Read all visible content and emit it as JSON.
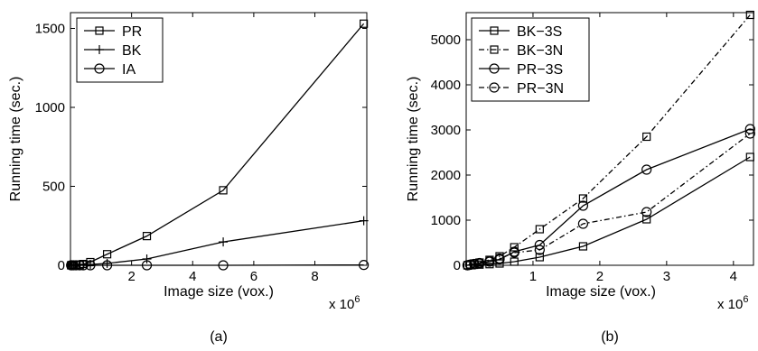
{
  "chart_data": [
    {
      "type": "line",
      "caption": "(a)",
      "xlabel": "Image size (vox.)",
      "ylabel": "Running time (sec.)",
      "x_multiplier": "x 10",
      "x_multiplier_exp": "6",
      "xlim": [
        0,
        9.7
      ],
      "ylim": [
        0,
        1600
      ],
      "xticks": [
        2,
        4,
        6,
        8
      ],
      "yticks": [
        0,
        500,
        1000,
        1500
      ],
      "legend_position": "top-left",
      "series": [
        {
          "name": "PR",
          "marker": "square",
          "style": "solid",
          "x": [
            0.02,
            0.05,
            0.1,
            0.18,
            0.3,
            0.42,
            0.65,
            1.2,
            2.5,
            5.0,
            9.6
          ],
          "y": [
            0,
            1,
            2,
            3,
            5,
            8,
            20,
            70,
            185,
            475,
            1530
          ]
        },
        {
          "name": "BK",
          "marker": "plus",
          "style": "solid",
          "x": [
            0.02,
            0.05,
            0.1,
            0.18,
            0.3,
            0.42,
            0.65,
            1.2,
            2.5,
            5.0,
            9.6
          ],
          "y": [
            0,
            0.5,
            1,
            1.5,
            2,
            3,
            5,
            12,
            40,
            148,
            282
          ]
        },
        {
          "name": "IA",
          "marker": "circle",
          "style": "solid",
          "x": [
            0.02,
            0.05,
            0.1,
            0.18,
            0.3,
            0.42,
            0.65,
            1.2,
            2.5,
            5.0,
            9.6
          ],
          "y": [
            0,
            0,
            0,
            0,
            0,
            0,
            0,
            0,
            0,
            0,
            2
          ]
        }
      ]
    },
    {
      "type": "line",
      "caption": "(b)",
      "xlabel": "Image size (vox.)",
      "ylabel": "Running time (sec.)",
      "x_multiplier": "x 10",
      "x_multiplier_exp": "6",
      "xlim": [
        0,
        4.3
      ],
      "ylim": [
        0,
        5600
      ],
      "xticks": [
        1,
        2,
        3,
        4
      ],
      "yticks": [
        0,
        1000,
        2000,
        3000,
        4000,
        5000
      ],
      "legend_position": "top-left",
      "series": [
        {
          "name": "BK−3S",
          "marker": "square",
          "style": "solid",
          "x": [
            0.02,
            0.06,
            0.12,
            0.2,
            0.35,
            0.5,
            0.72,
            1.1,
            1.75,
            2.7,
            4.25
          ],
          "y": [
            0,
            5,
            10,
            15,
            25,
            40,
            80,
            180,
            420,
            1020,
            2400
          ]
        },
        {
          "name": "BK−3N",
          "marker": "square",
          "style": "dashdot",
          "x": [
            0.02,
            0.06,
            0.12,
            0.2,
            0.35,
            0.5,
            0.72,
            1.1,
            1.75,
            2.7,
            4.25
          ],
          "y": [
            0,
            20,
            40,
            60,
            120,
            200,
            400,
            800,
            1480,
            2850,
            5550
          ]
        },
        {
          "name": "PR−3S",
          "marker": "circle",
          "style": "solid",
          "x": [
            0.02,
            0.06,
            0.12,
            0.2,
            0.35,
            0.5,
            0.72,
            1.1,
            1.75,
            2.7,
            4.25
          ],
          "y": [
            0,
            10,
            20,
            40,
            80,
            130,
            300,
            450,
            1320,
            2120,
            3020
          ]
        },
        {
          "name": "PR−3N",
          "marker": "circle",
          "style": "dashdot",
          "x": [
            0.02,
            0.06,
            0.12,
            0.2,
            0.35,
            0.5,
            0.72,
            1.1,
            1.75,
            2.7,
            4.25
          ],
          "y": [
            0,
            15,
            30,
            50,
            90,
            150,
            280,
            340,
            920,
            1180,
            2920
          ]
        }
      ]
    }
  ]
}
